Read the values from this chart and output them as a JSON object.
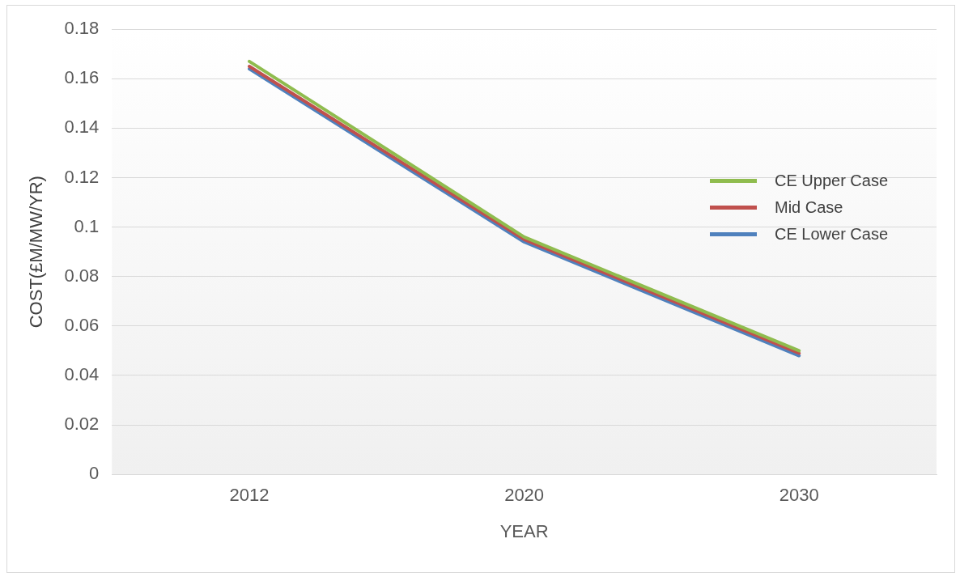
{
  "chart_data": {
    "type": "line",
    "xlabel": "YEAR",
    "ylabel": "COST(£M/MW/YR)",
    "categories": [
      "2012",
      "2020",
      "2030"
    ],
    "series": [
      {
        "name": "CE Upper Case",
        "color": "#8fbc4e",
        "values": [
          0.167,
          0.096,
          0.05
        ]
      },
      {
        "name": "Mid Case",
        "color": "#c0504d",
        "values": [
          0.165,
          0.095,
          0.049
        ]
      },
      {
        "name": "CE Lower Case",
        "color": "#4f81bd",
        "values": [
          0.164,
          0.094,
          0.048
        ]
      }
    ],
    "ylim": [
      0,
      0.18
    ],
    "yticks": [
      0,
      0.02,
      0.04,
      0.06,
      0.08,
      0.1,
      0.12,
      0.14,
      0.16,
      0.18
    ],
    "grid": "y",
    "legend": "right",
    "marker": "none",
    "line_style": "solid"
  }
}
